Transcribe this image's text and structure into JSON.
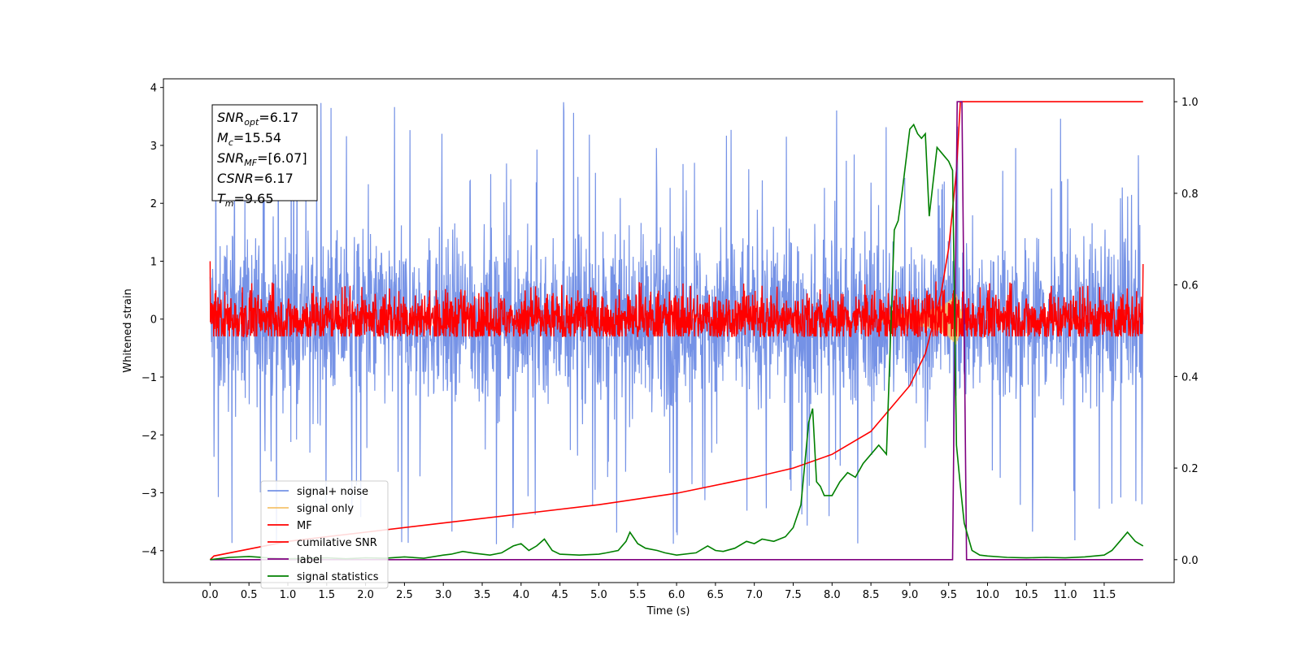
{
  "chart_data": {
    "type": "line",
    "xlabel": "Time (s)",
    "ylabel_left": "Whitened strain",
    "ylabel_right": "",
    "xlim": [
      -0.6,
      12.4
    ],
    "ylim_left": [
      -4.55,
      4.15
    ],
    "ylim_right": [
      -0.05,
      1.05
    ],
    "x_ticks": [
      "0.0",
      "0.5",
      "1.0",
      "1.5",
      "2.0",
      "2.5",
      "3.0",
      "3.5",
      "4.0",
      "4.5",
      "5.0",
      "5.5",
      "6.0",
      "6.5",
      "7.0",
      "7.5",
      "8.0",
      "8.5",
      "9.0",
      "9.5",
      "10.0",
      "10.5",
      "11.0",
      "11.5"
    ],
    "y_ticks_left": [
      "4",
      "3",
      "2",
      "1",
      "0",
      "−1",
      "−2",
      "−3",
      "−4"
    ],
    "y_ticks_right": [
      "1.0",
      "0.8",
      "0.6",
      "0.4",
      "0.2",
      "0.0"
    ],
    "grid": false,
    "legend_position": "lower-left",
    "annotation": [
      {
        "base": "SNR",
        "sub": "opt",
        "rest": "=6.17"
      },
      {
        "base": "M",
        "sub": "c",
        "rest": "=15.54"
      },
      {
        "base": "SNR",
        "sub": "MF",
        "rest": "=[6.07]"
      },
      {
        "base": "CSNR",
        "sub": "",
        "rest": "=6.17"
      },
      {
        "base": "T",
        "sub": "m",
        "rest": "=9.65"
      }
    ],
    "series": [
      {
        "name": "signal+ noise",
        "axis": "left",
        "color": "#7592e6",
        "style": "noise",
        "noise_band": [
          -0.8,
          0.8
        ],
        "spike_range": [
          -3.9,
          3.75
        ],
        "x_range": [
          0.0,
          12.0
        ]
      },
      {
        "name": "signal only",
        "axis": "left",
        "color": "#f5c26b",
        "style": "chirp",
        "x": [
          8.6,
          8.8,
          9.0,
          9.2,
          9.4,
          9.5,
          9.6,
          9.65,
          9.7
        ],
        "amplitude": [
          0.05,
          0.08,
          0.1,
          0.14,
          0.22,
          0.32,
          0.45,
          0.2,
          0.0
        ]
      },
      {
        "name": "MF",
        "axis": "left",
        "color": "#ff0000",
        "style": "noise",
        "noise_band": [
          -0.25,
          0.25
        ],
        "spike_range": [
          -0.3,
          0.65
        ],
        "x_range": [
          0.0,
          12.0
        ],
        "edge_values": [
          1.0,
          0.95
        ]
      },
      {
        "name": "cumilative SNR",
        "axis": "right",
        "color": "#ff0000",
        "style": "line",
        "x": [
          0.0,
          0.05,
          1.0,
          2.0,
          3.0,
          4.0,
          5.0,
          6.0,
          7.0,
          7.5,
          8.0,
          8.5,
          9.0,
          9.2,
          9.4,
          9.5,
          9.6,
          9.65,
          9.7,
          12.0
        ],
        "y": [
          0.0,
          0.008,
          0.04,
          0.06,
          0.08,
          0.1,
          0.12,
          0.145,
          0.18,
          0.2,
          0.23,
          0.28,
          0.38,
          0.45,
          0.58,
          0.68,
          0.85,
          1.0,
          1.0,
          1.0
        ]
      },
      {
        "name": "label",
        "axis": "right",
        "color": "#800080",
        "style": "line",
        "x": [
          0.0,
          9.55,
          9.61,
          9.67,
          9.73,
          12.0
        ],
        "y": [
          0.0,
          0.0,
          1.0,
          1.0,
          0.0,
          0.0
        ]
      },
      {
        "name": "signal statistics",
        "axis": "right",
        "color": "#008000",
        "style": "line",
        "x": [
          0.0,
          0.25,
          0.5,
          0.75,
          1.0,
          1.25,
          1.5,
          1.75,
          2.0,
          2.25,
          2.5,
          2.75,
          3.0,
          3.1,
          3.25,
          3.4,
          3.5,
          3.6,
          3.75,
          3.9,
          4.0,
          4.1,
          4.2,
          4.3,
          4.4,
          4.5,
          4.75,
          5.0,
          5.1,
          5.25,
          5.35,
          5.4,
          5.5,
          5.6,
          5.75,
          5.85,
          6.0,
          6.25,
          6.4,
          6.5,
          6.6,
          6.75,
          6.9,
          7.0,
          7.1,
          7.25,
          7.4,
          7.5,
          7.6,
          7.7,
          7.75,
          7.8,
          7.85,
          7.9,
          8.0,
          8.1,
          8.2,
          8.3,
          8.4,
          8.5,
          8.6,
          8.7,
          8.8,
          8.85,
          8.9,
          9.0,
          9.05,
          9.1,
          9.15,
          9.2,
          9.25,
          9.35,
          9.45,
          9.5,
          9.55,
          9.6,
          9.65,
          9.7,
          9.75,
          9.8,
          9.9,
          10.0,
          10.25,
          10.5,
          10.75,
          11.0,
          11.25,
          11.5,
          11.6,
          11.7,
          11.8,
          11.9,
          12.0
        ],
        "y": [
          0.0,
          0.005,
          0.007,
          0.004,
          0.002,
          0.003,
          0.004,
          0.002,
          0.004,
          0.003,
          0.006,
          0.003,
          0.01,
          0.012,
          0.018,
          0.014,
          0.012,
          0.01,
          0.015,
          0.03,
          0.035,
          0.02,
          0.03,
          0.045,
          0.02,
          0.012,
          0.01,
          0.012,
          0.015,
          0.02,
          0.04,
          0.06,
          0.035,
          0.025,
          0.02,
          0.015,
          0.01,
          0.015,
          0.03,
          0.02,
          0.018,
          0.025,
          0.04,
          0.035,
          0.045,
          0.04,
          0.05,
          0.07,
          0.12,
          0.3,
          0.33,
          0.17,
          0.16,
          0.14,
          0.14,
          0.17,
          0.19,
          0.18,
          0.21,
          0.23,
          0.25,
          0.23,
          0.72,
          0.74,
          0.8,
          0.94,
          0.95,
          0.93,
          0.92,
          0.93,
          0.75,
          0.9,
          0.88,
          0.87,
          0.85,
          0.25,
          0.16,
          0.08,
          0.05,
          0.02,
          0.01,
          0.008,
          0.005,
          0.004,
          0.005,
          0.004,
          0.006,
          0.01,
          0.02,
          0.04,
          0.06,
          0.04,
          0.03
        ]
      }
    ]
  }
}
